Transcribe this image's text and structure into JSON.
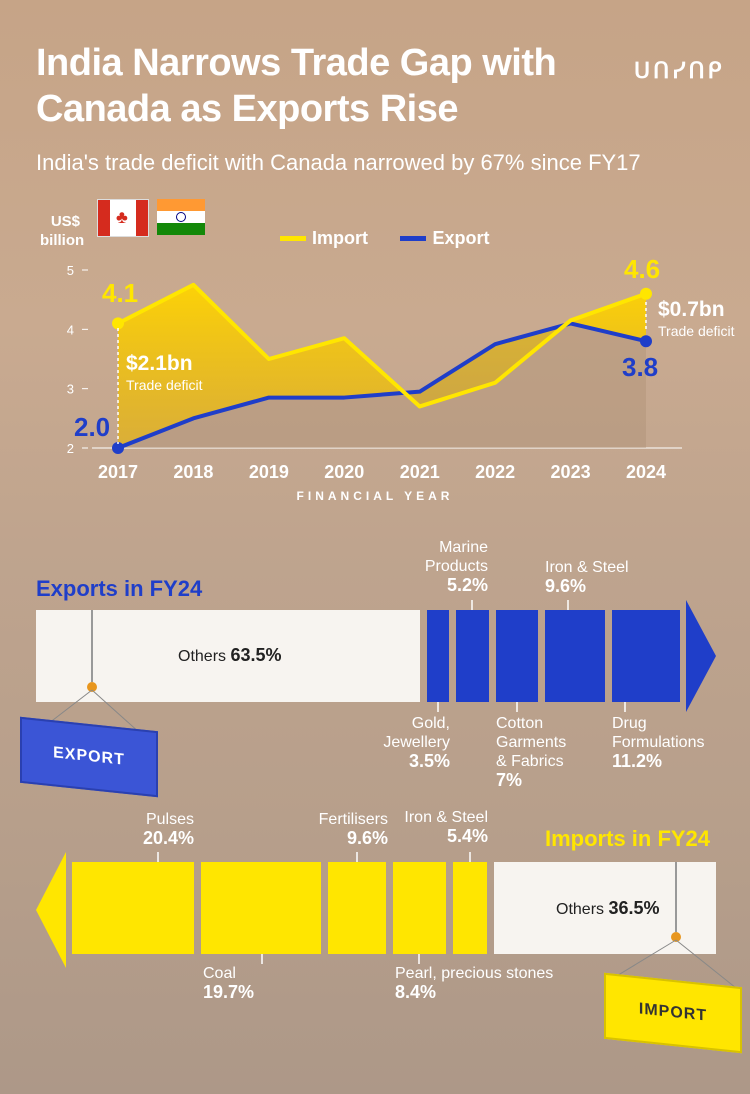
{
  "header": {
    "title": "India Narrows Trade Gap with Canada as Exports Rise",
    "subtitle": "India's trade deficit with Canada narrowed by 67% since FY17",
    "logo": "ᑌᑎᓯᑎᑭ"
  },
  "colors": {
    "import": "#ffe600",
    "export": "#1f3ec9",
    "others_fill": "#f7f4f0"
  },
  "chart_data": [
    {
      "type": "line",
      "ylabel": "US$ billion",
      "xlabel": "FINANCIAL YEAR",
      "x": [
        "2017",
        "2018",
        "2019",
        "2020",
        "2021",
        "2022",
        "2023",
        "2024"
      ],
      "ylim": [
        2,
        5
      ],
      "yticks": [
        2,
        3,
        4,
        5
      ],
      "series": [
        {
          "name": "Import",
          "values": [
            4.1,
            4.75,
            3.5,
            3.85,
            2.7,
            3.1,
            4.15,
            4.6
          ]
        },
        {
          "name": "Export",
          "values": [
            2.0,
            2.5,
            2.85,
            2.85,
            2.95,
            3.75,
            4.1,
            3.8
          ]
        }
      ],
      "annotations": {
        "start_import": "4.1",
        "start_export": "2.0",
        "end_import": "4.6",
        "end_export": "3.8",
        "deficit_start_value": "$2.1bn",
        "deficit_start_text": "Trade deficit",
        "deficit_end_value": "$0.7bn",
        "deficit_end_text": "Trade deficit"
      }
    },
    {
      "type": "bar",
      "title": "Exports in FY24",
      "categories": [
        "Others",
        "Gold, Jewellery",
        "Marine Products",
        "Cotton Garments & Fabrics",
        "Iron & Steel",
        "Drug Formulations"
      ],
      "values": [
        63.5,
        3.5,
        5.2,
        7,
        9.6,
        11.2
      ],
      "unit": "%"
    },
    {
      "type": "bar",
      "title": "Imports in FY24",
      "categories": [
        "Pulses",
        "Coal",
        "Fertilisers",
        "Pearl, precious stones",
        "Iron & Steel",
        "Others"
      ],
      "values": [
        20.4,
        19.7,
        9.6,
        8.4,
        5.4,
        36.5
      ],
      "unit": "%"
    }
  ],
  "labels": {
    "y_unit_1": "US$",
    "y_unit_2": "billion",
    "legend_import": "Import",
    "legend_export": "Export",
    "export_container": "EXPORT",
    "import_container": "IMPORT",
    "exports_title": "Exports in FY24",
    "imports_title": "Imports in FY24",
    "exp_others": "Others",
    "exp_others_pct": "63.5%",
    "exp_gold_1": "Gold,",
    "exp_gold_2": "Jewellery",
    "exp_gold_pct": "3.5%",
    "exp_marine_1": "Marine",
    "exp_marine_2": "Products",
    "exp_marine_pct": "5.2%",
    "exp_cotton_1": "Cotton",
    "exp_cotton_2": "Garments",
    "exp_cotton_3": "& Fabrics",
    "exp_cotton_pct": "7%",
    "exp_iron": "Iron & Steel",
    "exp_iron_pct": "9.6%",
    "exp_drug_1": "Drug",
    "exp_drug_2": "Formulations",
    "exp_drug_pct": "11.2%",
    "imp_pulses": "Pulses",
    "imp_pulses_pct": "20.4%",
    "imp_coal": "Coal",
    "imp_coal_pct": "19.7%",
    "imp_fert": "Fertilisers",
    "imp_fert_pct": "9.6%",
    "imp_pearl": "Pearl, precious stones",
    "imp_pearl_pct": "8.4%",
    "imp_iron": "Iron & Steel",
    "imp_iron_pct": "5.4%",
    "imp_others": "Others",
    "imp_others_pct": "36.5%"
  }
}
